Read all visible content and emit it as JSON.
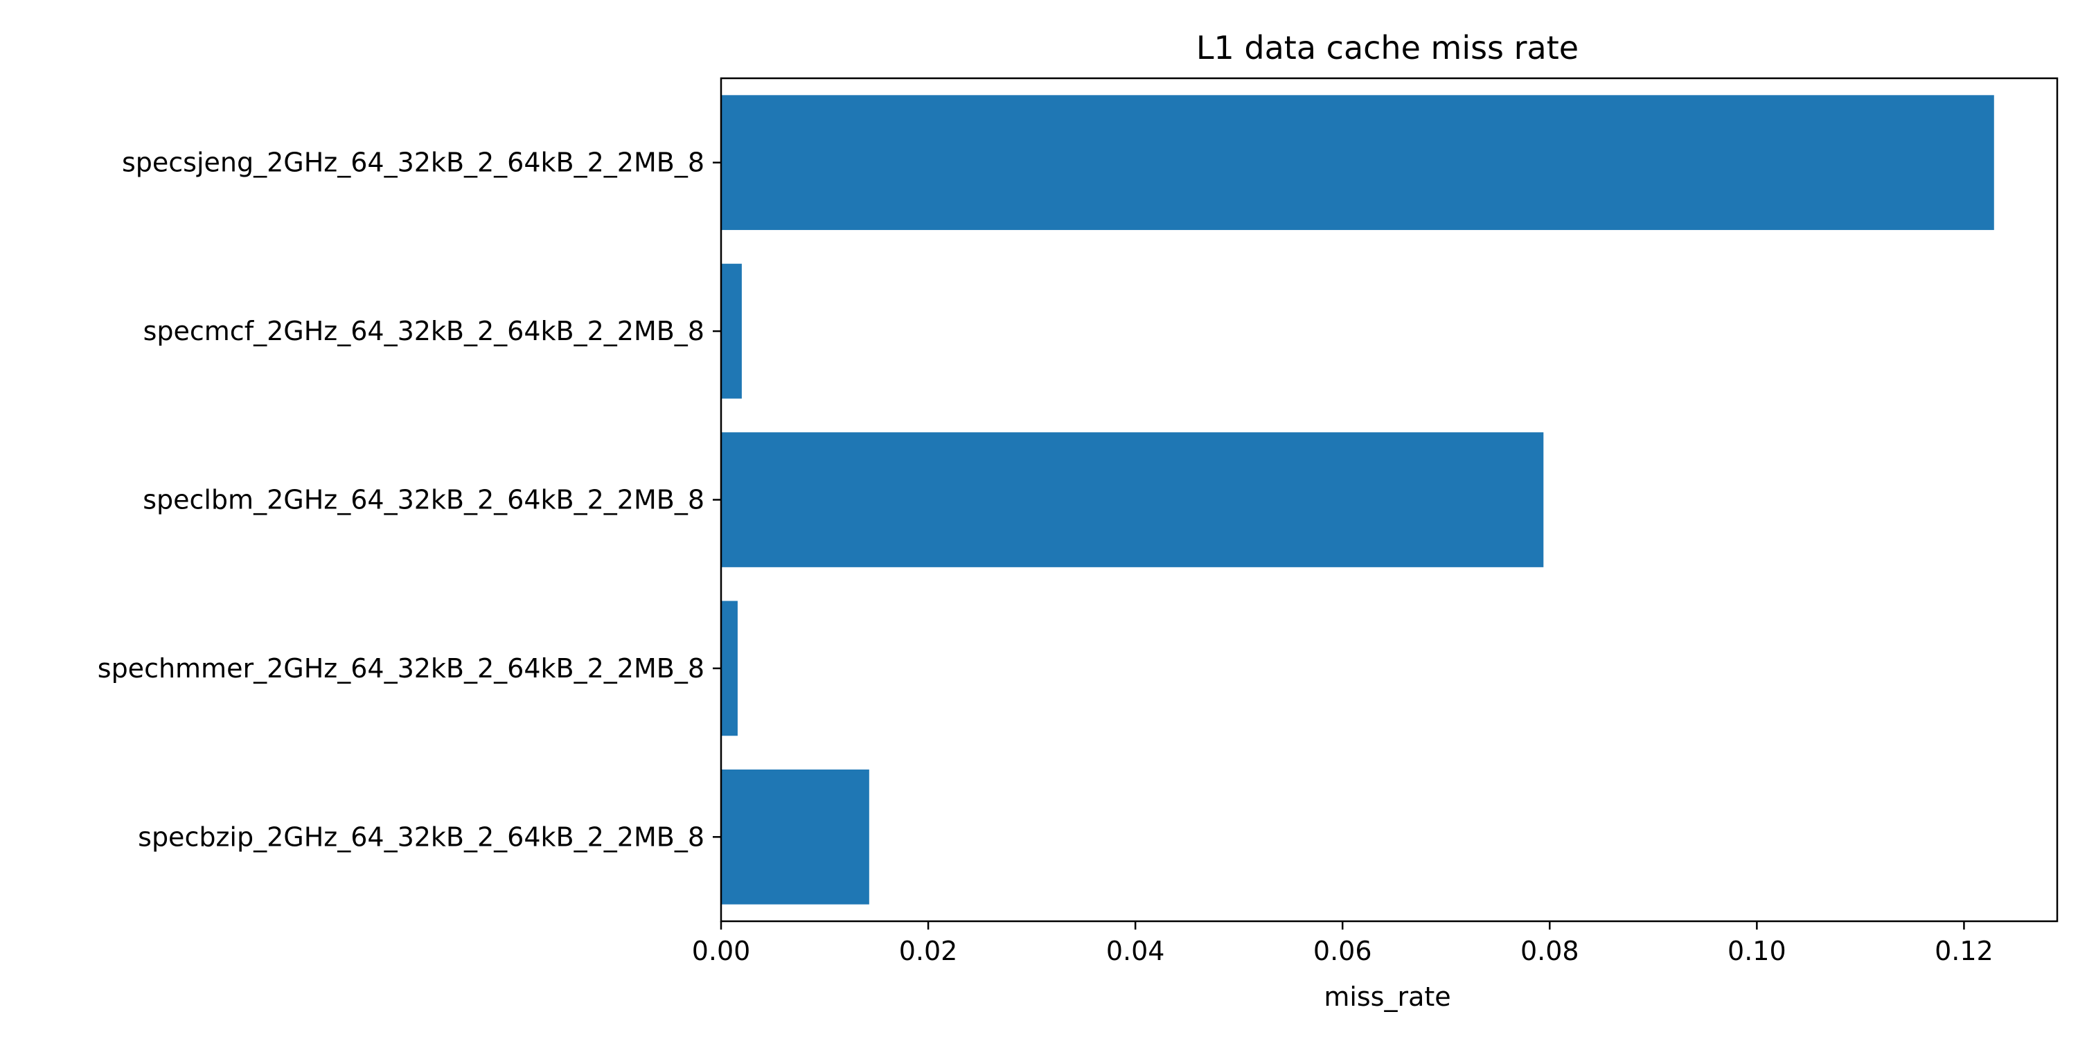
{
  "chart_data": {
    "type": "bar",
    "orientation": "horizontal",
    "title": "L1 data cache miss rate",
    "xlabel": "miss_rate",
    "ylabel": "",
    "categories": [
      "specsjeng_2GHz_64_32kB_2_64kB_2_2MB_8",
      "specmcf_2GHz_64_32kB_2_64kB_2_2MB_8",
      "speclbm_2GHz_64_32kB_2_64kB_2_2MB_8",
      "spechmmer_2GHz_64_32kB_2_64kB_2_2MB_8",
      "specbzip_2GHz_64_32kB_2_64kB_2_2MB_8"
    ],
    "values": [
      0.1229,
      0.002,
      0.0794,
      0.0016,
      0.0143
    ],
    "xlim": [
      0,
      0.129
    ],
    "xticks": [
      0.0,
      0.02,
      0.04,
      0.06,
      0.08,
      0.1,
      0.12
    ],
    "xtick_labels": [
      "0.00",
      "0.02",
      "0.04",
      "0.06",
      "0.08",
      "0.10",
      "0.12"
    ],
    "grid": false,
    "legend": "none",
    "bar_color": "#1f77b4",
    "axis_color": "#000000"
  }
}
